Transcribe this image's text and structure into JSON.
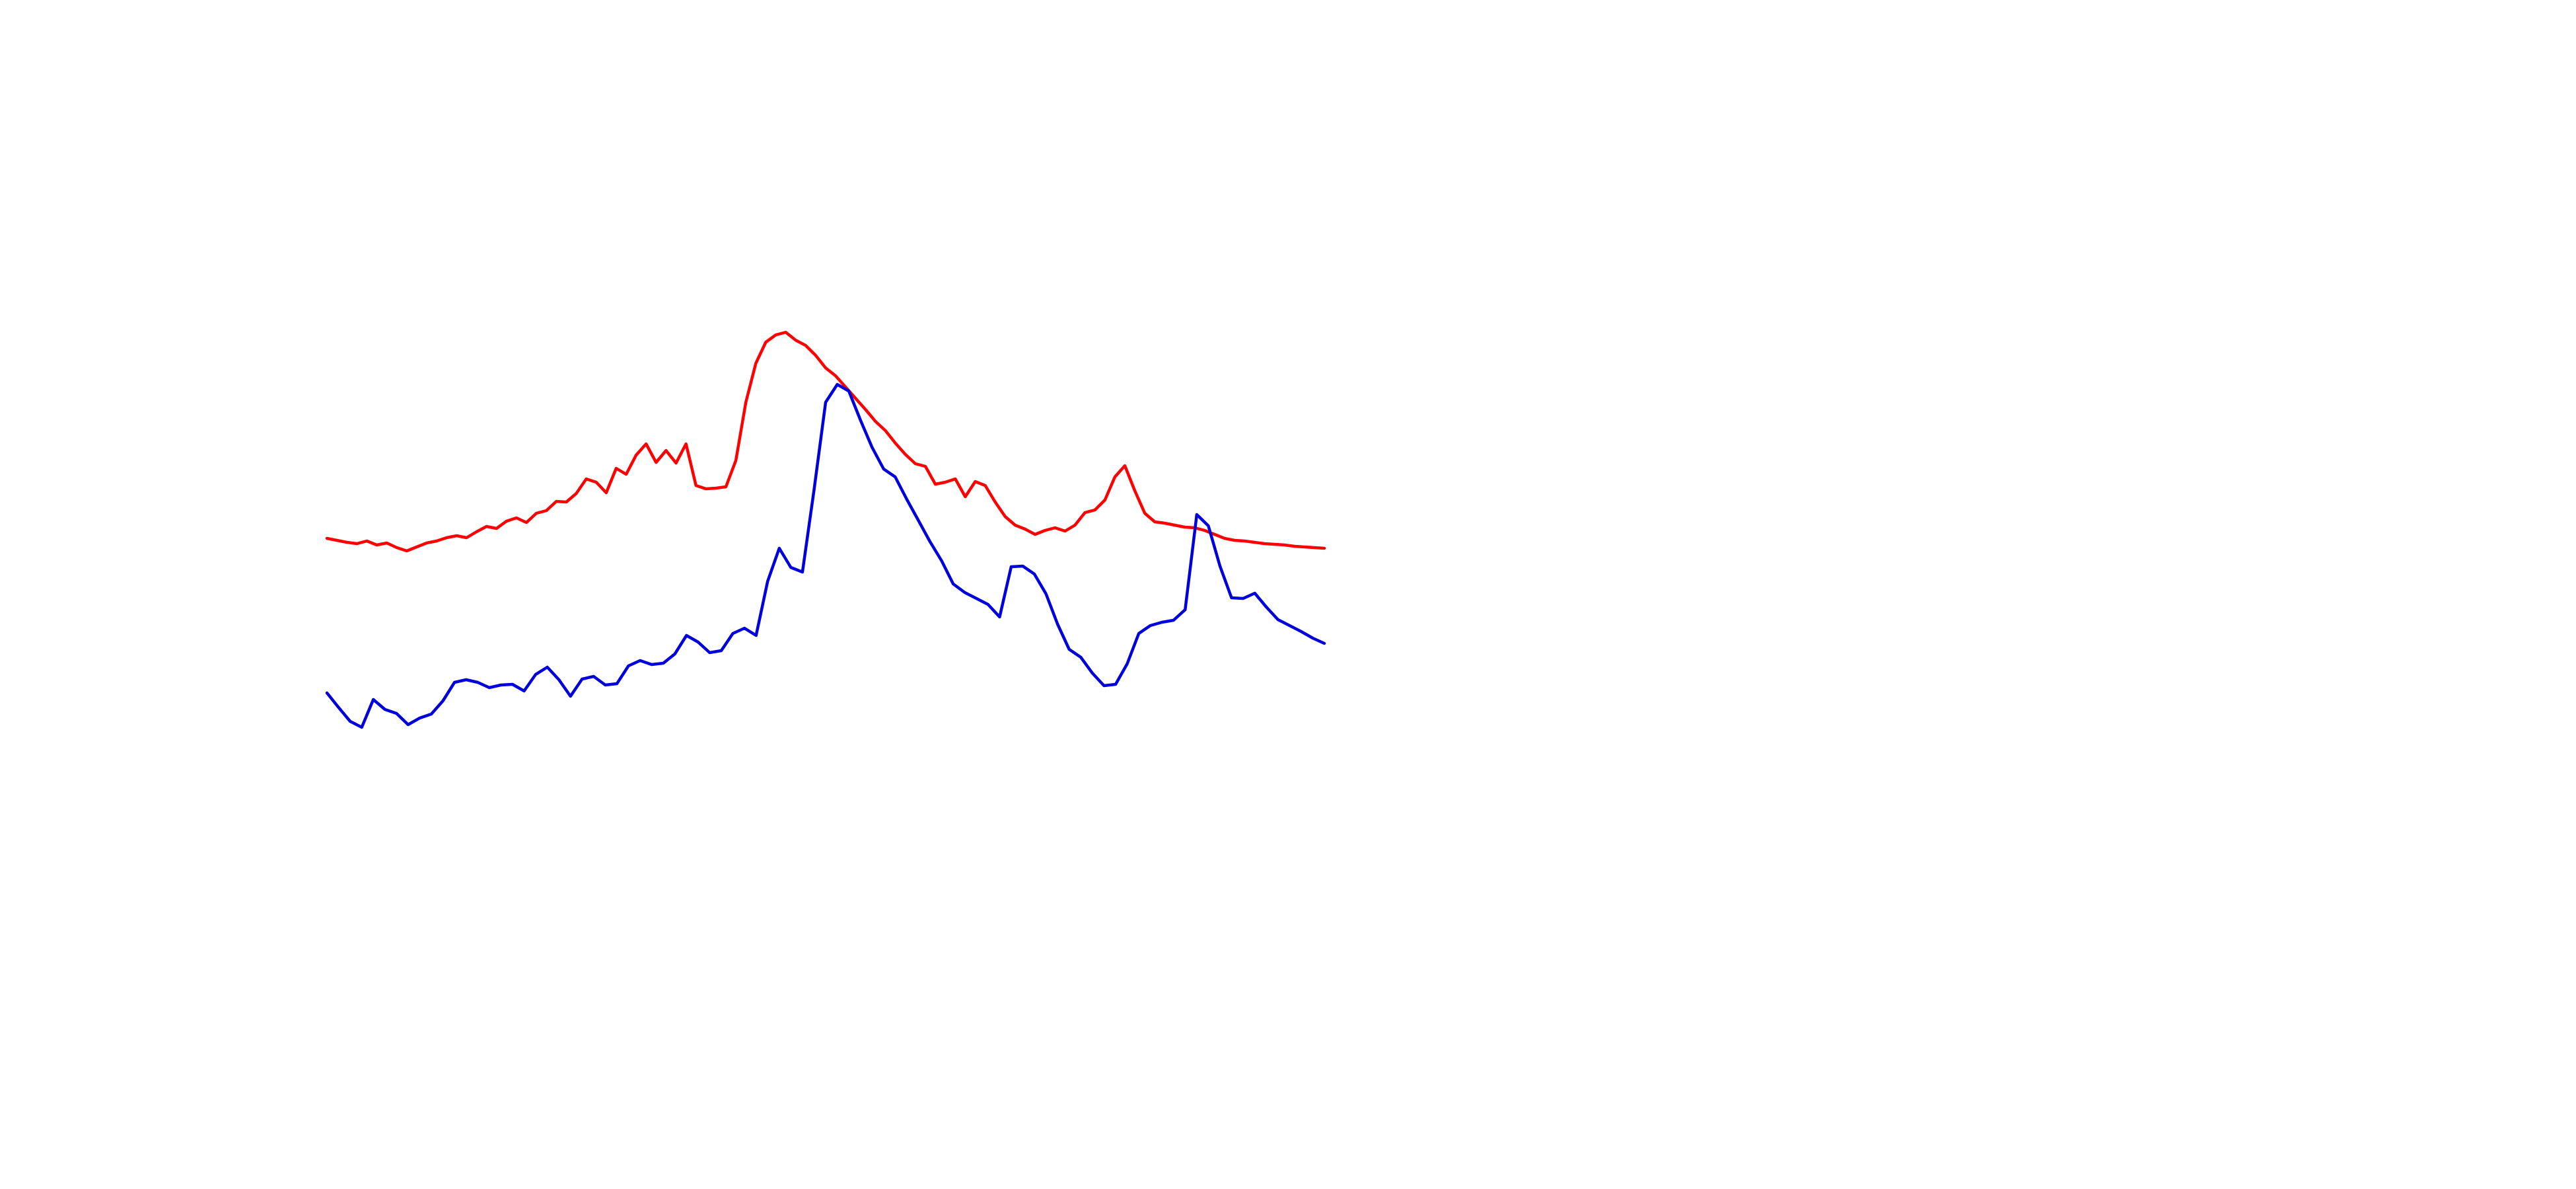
{
  "chart_data": {
    "type": "line",
    "title": "",
    "xlabel": "",
    "ylabel": "",
    "axes_visible": false,
    "grid": false,
    "legend": "none",
    "xlim": [
      0,
      100
    ],
    "ylim": [
      0,
      100
    ],
    "series": [
      {
        "color": "#ff0000",
        "points": [
          [
            0,
            53.0
          ],
          [
            1,
            52.7
          ],
          [
            2,
            52.4
          ],
          [
            3,
            52.2
          ],
          [
            4,
            52.6
          ],
          [
            5,
            52.0
          ],
          [
            6,
            52.3
          ],
          [
            7,
            51.6
          ],
          [
            8,
            51.1
          ],
          [
            9,
            51.7
          ],
          [
            10,
            52.3
          ],
          [
            11,
            52.6
          ],
          [
            12,
            53.1
          ],
          [
            13,
            53.4
          ],
          [
            14,
            53.1
          ],
          [
            15,
            54.0
          ],
          [
            16,
            54.8
          ],
          [
            17,
            54.5
          ],
          [
            18,
            55.6
          ],
          [
            19,
            56.1
          ],
          [
            20,
            55.4
          ],
          [
            21,
            56.8
          ],
          [
            22,
            57.2
          ],
          [
            23,
            58.6
          ],
          [
            24,
            58.5
          ],
          [
            25,
            59.8
          ],
          [
            26,
            62.0
          ],
          [
            27,
            61.5
          ],
          [
            28,
            59.9
          ],
          [
            29,
            63.6
          ],
          [
            30,
            62.7
          ],
          [
            31,
            65.6
          ],
          [
            32,
            67.3
          ],
          [
            33,
            64.5
          ],
          [
            34,
            66.3
          ],
          [
            35,
            64.4
          ],
          [
            36,
            67.3
          ],
          [
            37,
            61.0
          ],
          [
            38,
            60.5
          ],
          [
            39,
            60.6
          ],
          [
            40,
            60.8
          ],
          [
            41,
            64.8
          ],
          [
            42,
            73.6
          ],
          [
            43,
            79.5
          ],
          [
            44,
            82.7
          ],
          [
            45,
            83.8
          ],
          [
            46,
            84.2
          ],
          [
            47,
            83.0
          ],
          [
            48,
            82.2
          ],
          [
            49,
            80.7
          ],
          [
            50,
            78.8
          ],
          [
            51,
            77.6
          ],
          [
            52,
            75.9
          ],
          [
            53,
            74.2
          ],
          [
            54,
            72.5
          ],
          [
            55,
            70.7
          ],
          [
            56,
            69.3
          ],
          [
            57,
            67.4
          ],
          [
            58,
            65.7
          ],
          [
            59,
            64.3
          ],
          [
            60,
            63.9
          ],
          [
            61,
            61.2
          ],
          [
            62,
            61.5
          ],
          [
            63,
            62.0
          ],
          [
            64,
            59.3
          ],
          [
            65,
            61.6
          ],
          [
            66,
            61.0
          ],
          [
            67,
            58.5
          ],
          [
            68,
            56.3
          ],
          [
            69,
            55.0
          ],
          [
            70,
            54.4
          ],
          [
            71,
            53.6
          ],
          [
            72,
            54.2
          ],
          [
            73,
            54.6
          ],
          [
            74,
            54.1
          ],
          [
            75,
            55.0
          ],
          [
            76,
            56.9
          ],
          [
            77,
            57.3
          ],
          [
            78,
            58.8
          ],
          [
            79,
            62.3
          ],
          [
            80,
            64.0
          ],
          [
            81,
            60.2
          ],
          [
            82,
            56.8
          ],
          [
            83,
            55.5
          ],
          [
            84,
            55.3
          ],
          [
            85,
            55.0
          ],
          [
            86,
            54.7
          ],
          [
            87,
            54.6
          ],
          [
            88,
            54.2
          ],
          [
            89,
            53.6
          ],
          [
            90,
            53.0
          ],
          [
            91,
            52.7
          ],
          [
            92,
            52.6
          ],
          [
            93,
            52.4
          ],
          [
            94,
            52.2
          ],
          [
            95,
            52.1
          ],
          [
            96,
            52.0
          ],
          [
            97,
            51.8
          ],
          [
            98,
            51.7
          ],
          [
            99,
            51.6
          ],
          [
            100,
            51.5
          ]
        ]
      },
      {
        "color": "#0000dd",
        "points": [
          [
            0,
            29.6
          ],
          [
            1,
            27.4
          ],
          [
            2,
            25.3
          ],
          [
            3,
            24.4
          ],
          [
            4,
            28.6
          ],
          [
            5,
            27.1
          ],
          [
            6,
            26.5
          ],
          [
            7,
            24.8
          ],
          [
            8,
            25.8
          ],
          [
            9,
            26.4
          ],
          [
            10,
            28.4
          ],
          [
            11,
            31.2
          ],
          [
            12,
            31.6
          ],
          [
            13,
            31.2
          ],
          [
            14,
            30.4
          ],
          [
            15,
            30.8
          ],
          [
            16,
            30.9
          ],
          [
            17,
            29.9
          ],
          [
            18,
            32.4
          ],
          [
            19,
            33.5
          ],
          [
            20,
            31.6
          ],
          [
            21,
            29.1
          ],
          [
            22,
            31.7
          ],
          [
            23,
            32.1
          ],
          [
            24,
            30.8
          ],
          [
            25,
            31.0
          ],
          [
            26,
            33.7
          ],
          [
            27,
            34.5
          ],
          [
            28,
            33.9
          ],
          [
            29,
            34.1
          ],
          [
            30,
            35.5
          ],
          [
            31,
            38.3
          ],
          [
            32,
            37.3
          ],
          [
            33,
            35.7
          ],
          [
            34,
            36.0
          ],
          [
            35,
            38.6
          ],
          [
            36,
            39.4
          ],
          [
            37,
            38.3
          ],
          [
            38,
            46.5
          ],
          [
            39,
            51.5
          ],
          [
            40,
            48.6
          ],
          [
            41,
            47.9
          ],
          [
            42,
            60.3
          ],
          [
            43,
            73.6
          ],
          [
            44,
            76.3
          ],
          [
            45,
            75.3
          ],
          [
            46,
            70.9
          ],
          [
            47,
            66.8
          ],
          [
            48,
            63.5
          ],
          [
            49,
            62.3
          ],
          [
            50,
            58.9
          ],
          [
            51,
            55.7
          ],
          [
            52,
            52.5
          ],
          [
            53,
            49.6
          ],
          [
            54,
            46.1
          ],
          [
            55,
            44.8
          ],
          [
            56,
            43.9
          ],
          [
            57,
            43.0
          ],
          [
            58,
            41.1
          ],
          [
            59,
            48.7
          ],
          [
            60,
            48.8
          ],
          [
            61,
            47.6
          ],
          [
            62,
            44.6
          ],
          [
            63,
            40.0
          ],
          [
            64,
            36.2
          ],
          [
            65,
            35.0
          ],
          [
            66,
            32.6
          ],
          [
            67,
            30.7
          ],
          [
            68,
            30.9
          ],
          [
            69,
            34.0
          ],
          [
            70,
            38.6
          ],
          [
            71,
            39.8
          ],
          [
            72,
            40.3
          ],
          [
            73,
            40.6
          ],
          [
            74,
            42.2
          ],
          [
            75,
            56.6
          ],
          [
            76,
            54.9
          ],
          [
            77,
            48.8
          ],
          [
            78,
            44.0
          ],
          [
            79,
            43.9
          ],
          [
            80,
            44.7
          ],
          [
            81,
            42.6
          ],
          [
            82,
            40.7
          ],
          [
            83,
            39.8
          ],
          [
            84,
            38.9
          ],
          [
            85,
            37.9
          ],
          [
            86,
            37.1
          ]
        ],
        "x_span": [
          0,
          100
        ]
      }
    ]
  }
}
